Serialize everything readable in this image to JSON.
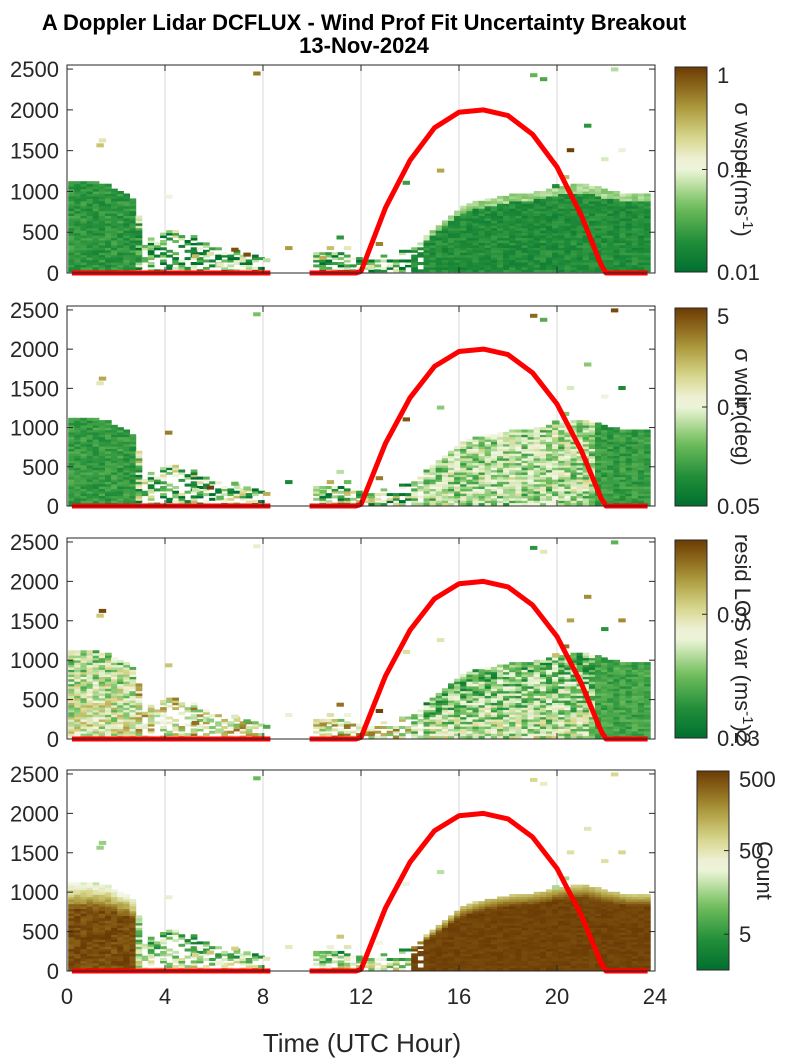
{
  "title": {
    "line1": "A Doppler Lidar DCFLUX - Wind Prof Fit Uncertainty Breakout",
    "line2": "13-Nov-2024"
  },
  "colors": {
    "sun_curve": "#ff0000",
    "cmap_low": "#00702f",
    "cmap_mid": "#f4f7e8",
    "cmap_high": "#6b3b05",
    "grid": "#d9d9d9"
  },
  "chart_data": [
    {
      "type": "heatmap",
      "xlabel": "",
      "ylabel": "",
      "x_ticks": [
        0,
        4,
        8,
        12,
        16,
        20,
        24
      ],
      "x_tick_labels": [
        "",
        "",
        "",
        "",
        "",
        "",
        ""
      ],
      "xlim": [
        0,
        24
      ],
      "ylim": [
        0,
        2550
      ],
      "y_ticks": [
        0,
        500,
        1000,
        1500,
        2000,
        2500
      ],
      "y_tick_labels": [
        "0",
        "500",
        "1000",
        "1500",
        "2000",
        "2500"
      ],
      "grid": "vertical",
      "colorbar": {
        "label": "σ wspd (ms-1)",
        "label_text": "σ wspd (ms",
        "label_sup": "-1",
        "label_end": ")",
        "scale": "log",
        "ticks": [
          0.01,
          0.1,
          1
        ],
        "tick_labels": [
          "0.01",
          "0.1",
          "1"
        ]
      },
      "fill_metric": "wspd"
    },
    {
      "type": "heatmap",
      "xlabel": "",
      "ylabel": "",
      "x_ticks": [
        0,
        4,
        8,
        12,
        16,
        20,
        24
      ],
      "x_tick_labels": [
        "",
        "",
        "",
        "",
        "",
        "",
        ""
      ],
      "xlim": [
        0,
        24
      ],
      "ylim": [
        0,
        2550
      ],
      "y_ticks": [
        0,
        500,
        1000,
        1500,
        2000,
        2500
      ],
      "y_tick_labels": [
        "0",
        "500",
        "1000",
        "1500",
        "2000",
        "2500"
      ],
      "grid": "vertical",
      "colorbar": {
        "label": "σ wdir (deg)",
        "label_text": "σ wdir (deg)",
        "label_sup": "",
        "label_end": "",
        "scale": "log",
        "ticks": [
          0.05,
          0.5,
          5
        ],
        "tick_labels": [
          "0.05",
          "0.5",
          "5"
        ]
      },
      "fill_metric": "wdir"
    },
    {
      "type": "heatmap",
      "xlabel": "",
      "ylabel": "",
      "x_ticks": [
        0,
        4,
        8,
        12,
        16,
        20,
        24
      ],
      "x_tick_labels": [
        "",
        "",
        "",
        "",
        "",
        "",
        ""
      ],
      "xlim": [
        0,
        24
      ],
      "ylim": [
        0,
        2550
      ],
      "y_ticks": [
        0,
        500,
        1000,
        1500,
        2000,
        2500
      ],
      "y_tick_labels": [
        "0",
        "500",
        "1000",
        "1500",
        "2000",
        "2500"
      ],
      "grid": "vertical",
      "colorbar": {
        "label": "resid LOS var (ms-1)2",
        "label_text": "resid LOS var (ms",
        "label_sup": "-1",
        "label_end": ")2",
        "scale": "log",
        "ticks": [
          0.03,
          0.3
        ],
        "tick_labels": [
          "0.03",
          "0.3"
        ]
      },
      "fill_metric": "resid"
    },
    {
      "type": "heatmap",
      "xlabel": "Time (UTC Hour)",
      "ylabel": "",
      "x_ticks": [
        0,
        4,
        8,
        12,
        16,
        20,
        24
      ],
      "x_tick_labels": [
        "0",
        "4",
        "8",
        "12",
        "16",
        "20",
        "24"
      ],
      "xlim": [
        0,
        24
      ],
      "ylim": [
        0,
        2550
      ],
      "y_ticks": [
        0,
        500,
        1000,
        1500,
        2000,
        2500
      ],
      "y_tick_labels": [
        "0",
        "500",
        "1000",
        "1500",
        "2000",
        "2500"
      ],
      "grid": "vertical",
      "colorbar": {
        "label": "Count",
        "label_text": "Count",
        "label_sup": "",
        "label_end": "",
        "scale": "log",
        "ticks": [
          5,
          50,
          500
        ],
        "tick_labels": [
          "5",
          "50",
          "500"
        ]
      },
      "fill_metric": "count"
    }
  ],
  "sun_curve": {
    "x": [
      0.2,
      8.3,
      9.9,
      11.8,
      12.0,
      13.0,
      14.0,
      15.0,
      16.0,
      17.0,
      18.0,
      19.0,
      20.0,
      21.0,
      21.8,
      22.0,
      23.7
    ],
    "y": [
      0,
      0,
      0,
      0,
      20,
      800,
      1380,
      1780,
      1970,
      2000,
      1930,
      1700,
      1300,
      700,
      100,
      0,
      0
    ],
    "gap": [
      8.3,
      9.9
    ]
  },
  "data_envelope": {
    "hours": [
      0,
      0.5,
      1,
      1.5,
      2,
      2.5,
      3,
      3.5,
      4,
      4.5,
      5,
      6,
      7,
      8,
      10,
      11,
      12,
      13,
      14,
      15,
      16,
      17,
      18,
      19,
      20,
      21,
      22,
      23,
      24
    ],
    "top_m": [
      1100,
      1100,
      1100,
      1080,
      1000,
      950,
      500,
      350,
      550,
      500,
      450,
      300,
      250,
      200,
      250,
      250,
      200,
      200,
      300,
      550,
      800,
      900,
      950,
      980,
      1050,
      1080,
      1000,
      950,
      950
    ]
  }
}
